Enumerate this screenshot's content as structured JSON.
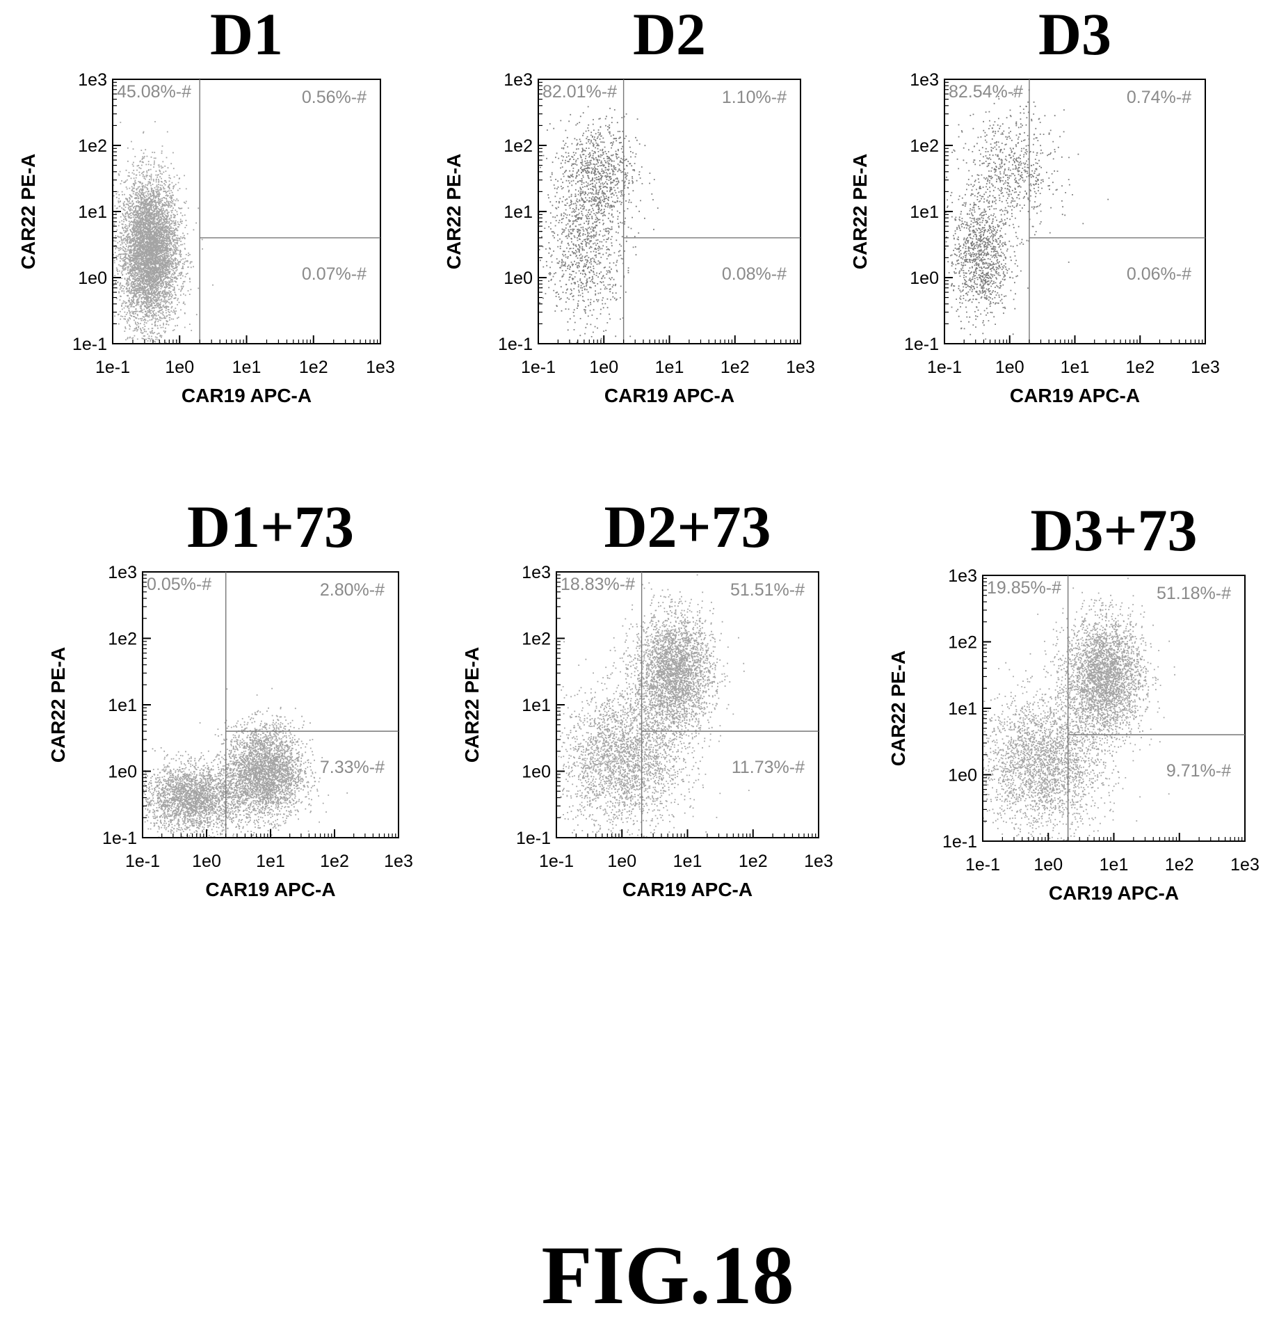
{
  "figure_label": "FIG.18",
  "chart_data": [
    {
      "type": "scatter",
      "title": "D1",
      "xlabel": "CAR19 APC-A",
      "ylabel": "CAR22 PE-A",
      "xscale": "log",
      "yscale": "log",
      "xlim": [
        0.1,
        1000
      ],
      "ylim": [
        0.1,
        1000
      ],
      "x_ticks": [
        "1e-1",
        "1e0",
        "1e1",
        "1e2",
        "1e3"
      ],
      "y_ticks": [
        "1e-1",
        "1e0",
        "1e1",
        "1e2",
        "1e3"
      ],
      "gate": {
        "x": 2.0,
        "y": 4.0
      },
      "quadrant_labels": {
        "upper_left": "45.08%-#",
        "upper_right": "0.56%-#",
        "lower_right": "0.07%-#"
      },
      "density": "high",
      "populations": [
        {
          "center": [
            0.35,
            2.5
          ],
          "spread": [
            0.22,
            0.55
          ],
          "weight": 1.0
        }
      ]
    },
    {
      "type": "scatter",
      "title": "D2",
      "xlabel": "CAR19 APC-A",
      "ylabel": "CAR22 PE-A",
      "xscale": "log",
      "yscale": "log",
      "xlim": [
        0.1,
        1000
      ],
      "ylim": [
        0.1,
        1000
      ],
      "x_ticks": [
        "1e-1",
        "1e0",
        "1e1",
        "1e2",
        "1e3"
      ],
      "y_ticks": [
        "1e-1",
        "1e0",
        "1e1",
        "1e2",
        "1e3"
      ],
      "gate": {
        "x": 2.0,
        "y": 4.0
      },
      "quadrant_labels": {
        "upper_left": "82.01%-#",
        "upper_right": "1.10%-#",
        "lower_right": "0.08%-#"
      },
      "density": "low",
      "populations": [
        {
          "center": [
            0.5,
            3.0
          ],
          "spread": [
            0.3,
            0.6
          ],
          "weight": 0.55
        },
        {
          "center": [
            0.8,
            40
          ],
          "spread": [
            0.3,
            0.4
          ],
          "weight": 0.45
        }
      ]
    },
    {
      "type": "scatter",
      "title": "D3",
      "xlabel": "CAR19 APC-A",
      "ylabel": "CAR22 PE-A",
      "xscale": "log",
      "yscale": "log",
      "xlim": [
        0.1,
        1000
      ],
      "ylim": [
        0.1,
        1000
      ],
      "x_ticks": [
        "1e-1",
        "1e0",
        "1e1",
        "1e2",
        "1e3"
      ],
      "y_ticks": [
        "1e-1",
        "1e0",
        "1e1",
        "1e2",
        "1e3"
      ],
      "gate": {
        "x": 2.0,
        "y": 4.0
      },
      "quadrant_labels": {
        "upper_left": "82.54%-#",
        "upper_right": "0.74%-#",
        "lower_right": "0.06%-#"
      },
      "density": "low",
      "populations": [
        {
          "center": [
            0.35,
            2.0
          ],
          "spread": [
            0.22,
            0.45
          ],
          "weight": 0.6
        },
        {
          "center": [
            1.0,
            40
          ],
          "spread": [
            0.35,
            0.45
          ],
          "weight": 0.4
        }
      ]
    },
    {
      "type": "scatter",
      "title": "D1+73",
      "xlabel": "CAR19 APC-A",
      "ylabel": "CAR22 PE-A",
      "xscale": "log",
      "yscale": "log",
      "xlim": [
        0.1,
        1000
      ],
      "ylim": [
        0.1,
        1000
      ],
      "x_ticks": [
        "1e-1",
        "1e0",
        "1e1",
        "1e2",
        "1e3"
      ],
      "y_ticks": [
        "1e-1",
        "1e0",
        "1e1",
        "1e2",
        "1e3"
      ],
      "gate": {
        "x": 2.0,
        "y": 4.0
      },
      "quadrant_labels": {
        "upper_left": "0.05%-#",
        "upper_right": "2.80%-#",
        "lower_right": "7.33%-#"
      },
      "density": "high",
      "populations": [
        {
          "center": [
            0.6,
            0.4
          ],
          "spread": [
            0.4,
            0.25
          ],
          "weight": 0.45
        },
        {
          "center": [
            8,
            1.0
          ],
          "spread": [
            0.3,
            0.35
          ],
          "weight": 0.55
        }
      ]
    },
    {
      "type": "scatter",
      "title": "D2+73",
      "xlabel": "CAR19 APC-A",
      "ylabel": "CAR22 PE-A",
      "xscale": "log",
      "yscale": "log",
      "xlim": [
        0.1,
        1000
      ],
      "ylim": [
        0.1,
        1000
      ],
      "x_ticks": [
        "1e-1",
        "1e0",
        "1e1",
        "1e2",
        "1e3"
      ],
      "y_ticks": [
        "1e-1",
        "1e0",
        "1e1",
        "1e2",
        "1e3"
      ],
      "gate": {
        "x": 2.0,
        "y": 4.0
      },
      "quadrant_labels": {
        "upper_left": "18.83%-#",
        "upper_right": "51.51%-#",
        "lower_right": "11.73%-#"
      },
      "density": "high",
      "populations": [
        {
          "center": [
            6,
            30
          ],
          "spread": [
            0.3,
            0.45
          ],
          "weight": 0.55
        },
        {
          "center": [
            1.0,
            1.5
          ],
          "spread": [
            0.45,
            0.5
          ],
          "weight": 0.45
        }
      ]
    },
    {
      "type": "scatter",
      "title": "D3+73",
      "xlabel": "CAR19 APC-A",
      "ylabel": "CAR22 PE-A",
      "xscale": "log",
      "yscale": "log",
      "xlim": [
        0.1,
        1000
      ],
      "ylim": [
        0.1,
        1000
      ],
      "x_ticks": [
        "1e-1",
        "1e0",
        "1e1",
        "1e2",
        "1e3"
      ],
      "y_ticks": [
        "1e-1",
        "1e0",
        "1e1",
        "1e2",
        "1e3"
      ],
      "gate": {
        "x": 2.0,
        "y": 4.0
      },
      "quadrant_labels": {
        "upper_left": "19.85%-#",
        "upper_right": "51.18%-#",
        "lower_right": "9.71%-#"
      },
      "density": "high",
      "populations": [
        {
          "center": [
            7,
            30
          ],
          "spread": [
            0.3,
            0.45
          ],
          "weight": 0.55
        },
        {
          "center": [
            0.8,
            1.5
          ],
          "spread": [
            0.45,
            0.5
          ],
          "weight": 0.45
        }
      ]
    }
  ]
}
